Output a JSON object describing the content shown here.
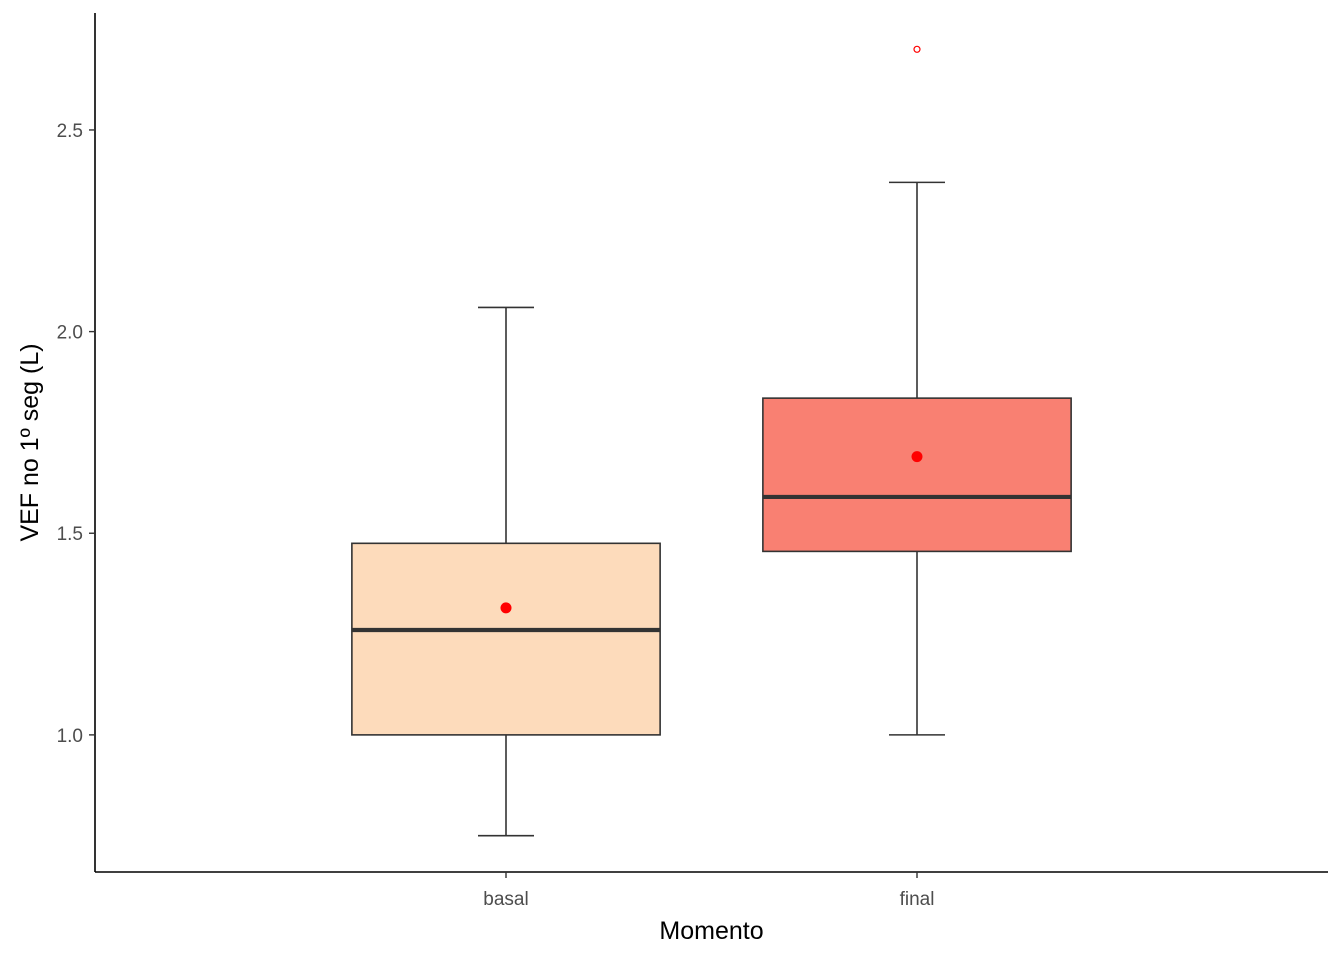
{
  "chart_data": {
    "type": "boxplot",
    "xlabel": "Momento",
    "ylabel": "VEF no 1º seg (L)",
    "ylim": [
      0.66,
      2.79
    ],
    "yticks": [
      1.0,
      1.5,
      2.0,
      2.5
    ],
    "ytick_labels": [
      "1.0",
      "1.5",
      "2.0",
      "2.5"
    ],
    "grid": false,
    "legend": "none",
    "categories": [
      "basal",
      "final"
    ],
    "boxes": [
      {
        "category": "basal",
        "whisker_low": 0.75,
        "q1": 1.0,
        "median": 1.26,
        "q3": 1.475,
        "whisker_high": 2.06,
        "mean": 1.315,
        "outliers": [],
        "fill": "#FDDBBB"
      },
      {
        "category": "final",
        "whisker_low": 1.0,
        "q1": 1.455,
        "median": 1.59,
        "q3": 1.835,
        "whisker_high": 2.37,
        "mean": 1.69,
        "outliers": [
          2.7
        ],
        "fill": "#F98072"
      }
    ],
    "colors": {
      "box_stroke": "#333333",
      "mean_point": "#FF0000",
      "outlier": "#FF0000",
      "axis": "#000000",
      "tick_text": "#4d4d4d"
    }
  }
}
